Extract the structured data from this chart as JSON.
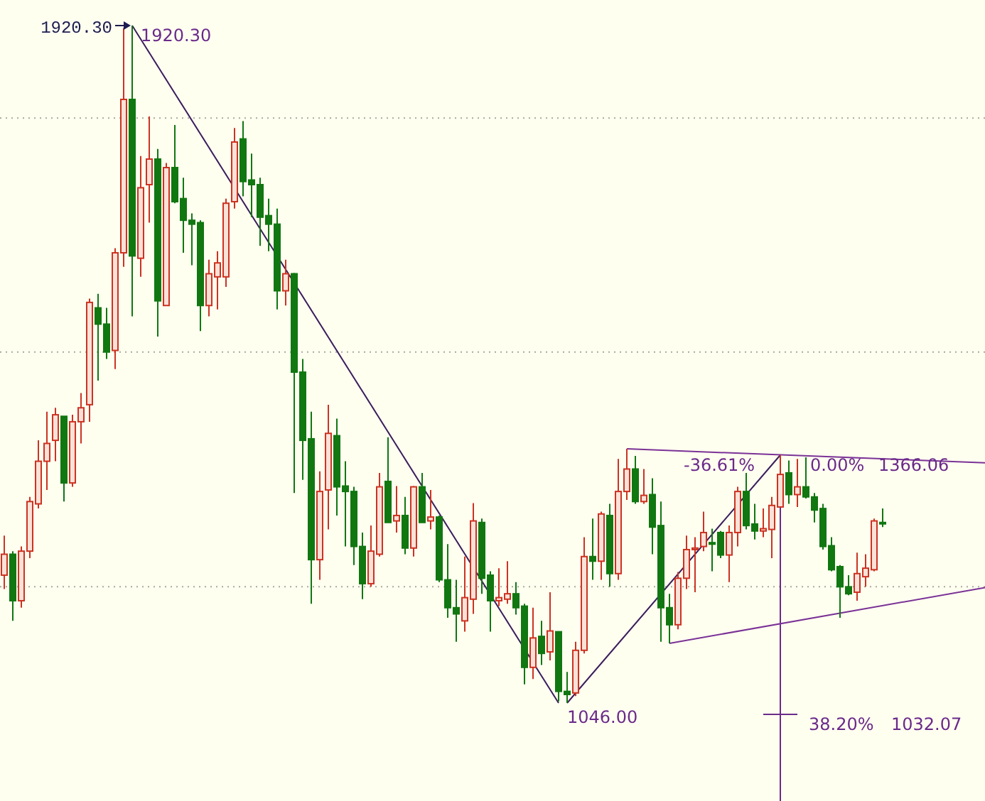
{
  "chart_data": {
    "type": "candlestick",
    "tick_labels": false,
    "grid": "y",
    "yticks": [
      {
        "value": 1801,
        "label": null
      },
      {
        "value": 1499,
        "label": null
      },
      {
        "value": 1196,
        "label": null
      }
    ],
    "categories": [
      null,
      null,
      null,
      null,
      null,
      null,
      null,
      null,
      null,
      null,
      null,
      null,
      null,
      null,
      null,
      null,
      null,
      null,
      null,
      null,
      null,
      null,
      null,
      null,
      null,
      null,
      null,
      null,
      null,
      null,
      null,
      null,
      null,
      null,
      null,
      null,
      null,
      null,
      null,
      null,
      null,
      null,
      null,
      null,
      null,
      null,
      null,
      null,
      null,
      null,
      null,
      null,
      null,
      null,
      null,
      null,
      null,
      null,
      null,
      null,
      null,
      null,
      null,
      null,
      null,
      null,
      null,
      null,
      null,
      null,
      null,
      null,
      null,
      null,
      null,
      null,
      null,
      null,
      null,
      null,
      null,
      null,
      null,
      null,
      null,
      null,
      null,
      null,
      null,
      null,
      null,
      null,
      null,
      null,
      null,
      null,
      null,
      null,
      null,
      null,
      null,
      null,
      null,
      null,
      null,
      null,
      null,
      null,
      null,
      null,
      null,
      null,
      null,
      null,
      null,
      null
    ],
    "ohlc": [
      [
        1211,
        1262,
        1193,
        1238
      ],
      [
        1238,
        1242,
        1152,
        1178
      ],
      [
        1178,
        1248,
        1169,
        1242
      ],
      [
        1242,
        1312,
        1233,
        1306
      ],
      [
        1303,
        1385,
        1297,
        1358
      ],
      [
        1358,
        1422,
        1321,
        1381
      ],
      [
        1385,
        1427,
        1358,
        1418
      ],
      [
        1416,
        1416,
        1306,
        1330
      ],
      [
        1330,
        1418,
        1325,
        1409
      ],
      [
        1409,
        1446,
        1381,
        1427
      ],
      [
        1431,
        1568,
        1409,
        1563
      ],
      [
        1556,
        1574,
        1462,
        1535
      ],
      [
        1535,
        1556,
        1490,
        1499
      ],
      [
        1501,
        1633,
        1477,
        1627
      ],
      [
        1627,
        1917,
        1609,
        1825
      ],
      [
        1825,
        1920.3,
        1545,
        1623
      ],
      [
        1620,
        1752,
        1596,
        1711
      ],
      [
        1715,
        1803,
        1666,
        1748
      ],
      [
        1748,
        1761,
        1519,
        1565
      ],
      [
        1559,
        1743,
        1559,
        1737
      ],
      [
        1737,
        1792,
        1691,
        1693
      ],
      [
        1697,
        1724,
        1627,
        1669
      ],
      [
        1669,
        1678,
        1611,
        1664
      ],
      [
        1666,
        1669,
        1526,
        1559
      ],
      [
        1559,
        1618,
        1545,
        1600
      ],
      [
        1596,
        1629,
        1554,
        1614
      ],
      [
        1596,
        1697,
        1583,
        1691
      ],
      [
        1693,
        1788,
        1684,
        1770
      ],
      [
        1774,
        1797,
        1700,
        1719
      ],
      [
        1721,
        1755,
        1673,
        1715
      ],
      [
        1715,
        1724,
        1636,
        1673
      ],
      [
        1675,
        1697,
        1629,
        1664
      ],
      [
        1664,
        1684,
        1554,
        1578
      ],
      [
        1578,
        1618,
        1559,
        1600
      ],
      [
        1600,
        1601,
        1317,
        1473
      ],
      [
        1473,
        1490,
        1334,
        1385
      ],
      [
        1387,
        1422,
        1174,
        1231
      ],
      [
        1231,
        1345,
        1205,
        1319
      ],
      [
        1321,
        1431,
        1270,
        1394
      ],
      [
        1391,
        1413,
        1288,
        1325
      ],
      [
        1326,
        1358,
        1248,
        1319
      ],
      [
        1319,
        1325,
        1224,
        1248
      ],
      [
        1248,
        1266,
        1180,
        1200
      ],
      [
        1200,
        1275,
        1196,
        1242
      ],
      [
        1238,
        1343,
        1235,
        1325
      ],
      [
        1332,
        1389,
        1279,
        1279
      ],
      [
        1281,
        1326,
        1266,
        1288
      ],
      [
        1288,
        1312,
        1238,
        1246
      ],
      [
        1246,
        1326,
        1235,
        1325
      ],
      [
        1325,
        1343,
        1279,
        1279
      ],
      [
        1281,
        1321,
        1270,
        1286
      ],
      [
        1286,
        1288,
        1202,
        1205
      ],
      [
        1205,
        1251,
        1156,
        1169
      ],
      [
        1169,
        1205,
        1125,
        1161
      ],
      [
        1152,
        1235,
        1138,
        1182
      ],
      [
        1180,
        1304,
        1161,
        1281
      ],
      [
        1279,
        1284,
        1187,
        1207
      ],
      [
        1211,
        1216,
        1138,
        1178
      ],
      [
        1178,
        1220,
        1171,
        1182
      ],
      [
        1180,
        1229,
        1174,
        1187
      ],
      [
        1187,
        1202,
        1160,
        1169
      ],
      [
        1171,
        1174,
        1070,
        1092
      ],
      [
        1092,
        1169,
        1077,
        1130
      ],
      [
        1132,
        1152,
        1095,
        1110
      ],
      [
        1112,
        1189,
        1101,
        1139
      ],
      [
        1138,
        1138,
        1048,
        1061
      ],
      [
        1061,
        1086,
        1046,
        1057
      ],
      [
        1059,
        1125,
        1055,
        1114
      ],
      [
        1114,
        1260,
        1110,
        1235
      ],
      [
        1235,
        1284,
        1205,
        1229
      ],
      [
        1229,
        1293,
        1205,
        1290
      ],
      [
        1288,
        1303,
        1196,
        1213
      ],
      [
        1213,
        1361,
        1205,
        1319
      ],
      [
        1319,
        1374,
        1308,
        1348
      ],
      [
        1348,
        1365,
        1303,
        1306
      ],
      [
        1306,
        1348,
        1303,
        1314
      ],
      [
        1315,
        1336,
        1238,
        1273
      ],
      [
        1275,
        1306,
        1125,
        1169
      ],
      [
        1169,
        1187,
        1123,
        1147
      ],
      [
        1147,
        1215,
        1141,
        1207
      ],
      [
        1207,
        1262,
        1193,
        1244
      ],
      [
        1244,
        1260,
        1189,
        1246
      ],
      [
        1248,
        1293,
        1242,
        1266
      ],
      [
        1253,
        1271,
        1216,
        1251
      ],
      [
        1266,
        1268,
        1233,
        1237
      ],
      [
        1237,
        1275,
        1202,
        1266
      ],
      [
        1266,
        1325,
        1248,
        1319
      ],
      [
        1319,
        1343,
        1270,
        1275
      ],
      [
        1277,
        1303,
        1257,
        1268
      ],
      [
        1268,
        1297,
        1260,
        1271
      ],
      [
        1270,
        1312,
        1233,
        1301
      ],
      [
        1299,
        1366.06,
        1299,
        1341
      ],
      [
        1343,
        1359,
        1303,
        1315
      ],
      [
        1315,
        1361,
        1299,
        1325
      ],
      [
        1325,
        1363,
        1310,
        1312
      ],
      [
        1312,
        1317,
        1279,
        1295
      ],
      [
        1297,
        1303,
        1244,
        1248
      ],
      [
        1249,
        1260,
        1216,
        1218
      ],
      [
        1222,
        1224,
        1156,
        1196
      ],
      [
        1196,
        1211,
        1185,
        1187
      ],
      [
        1189,
        1240,
        1178,
        1213
      ],
      [
        1209,
        1238,
        1196,
        1220
      ],
      [
        1218,
        1284,
        1216,
        1281
      ],
      [
        1279,
        1297,
        1273,
        1279
      ],
      null,
      null,
      null,
      null,
      null,
      null,
      null,
      null,
      null,
      null,
      null,
      null
    ],
    "colors": [
      "#cc3322",
      "#117711",
      "#cc3322",
      "#cc3322",
      "#cc3322",
      "#cc3322",
      "#cc3322",
      "#117711",
      "#cc3322",
      "#cc3322",
      "#cc3322",
      "#117711",
      "#117711",
      "#cc3322",
      "#cc3322",
      "#117711",
      "#cc3322",
      "#cc3322",
      "#117711",
      "#cc3322",
      "#117711",
      "#117711",
      "#117711",
      "#117711",
      "#cc3322",
      "#cc3322",
      "#cc3322",
      "#cc3322",
      "#117711",
      "#117711",
      "#117711",
      "#117711",
      "#117711",
      "#cc3322",
      "#117711",
      "#117711",
      "#117711",
      "#cc3322",
      "#cc3322",
      "#117711",
      "#117711",
      "#117711",
      "#117711",
      "#cc3322",
      "#cc3322",
      "#117711",
      "#cc3322",
      "#117711",
      "#cc3322",
      "#117711",
      "#cc3322",
      "#117711",
      "#117711",
      "#117711",
      "#cc3322",
      "#cc3322",
      "#117711",
      "#117711",
      "#cc3322",
      "#cc3322",
      "#117711",
      "#117711",
      "#cc3322",
      "#117711",
      "#cc3322",
      "#117711",
      "#117711",
      "#cc3322",
      "#cc3322",
      "#117711",
      "#cc3322",
      "#117711",
      "#cc3322",
      "#cc3322",
      "#117711",
      "#cc3322",
      "#117711",
      "#117711",
      "#117711",
      "#cc3322",
      "#cc3322",
      "#cc3322",
      "#cc3322",
      "#117711",
      "#117711",
      "#cc3322",
      "#cc3322",
      "#117711",
      "#117711",
      "#cc3322",
      "#cc3322",
      "#cc3322",
      "#117711",
      "#cc3322",
      "#117711",
      "#117711",
      "#117711",
      "#117711",
      "#117711",
      "#117711",
      "#cc3322",
      "#cc3322",
      "#cc3322",
      "#117711",
      null,
      null,
      null,
      null,
      null,
      null,
      null,
      null,
      null,
      null,
      null,
      null
    ],
    "series": [
      {
        "type": "line",
        "color": "#3a1d5c",
        "values": [
          null,
          null,
          null,
          null,
          null,
          null,
          null,
          null,
          null,
          null,
          null,
          null,
          null,
          null,
          null,
          1920.3,
          null,
          null,
          null,
          null,
          null,
          null,
          null,
          null,
          null,
          null,
          null,
          null,
          null,
          null,
          null,
          null,
          null,
          null,
          null,
          null,
          null,
          null,
          null,
          null,
          null,
          null,
          null,
          null,
          null,
          null,
          null,
          null,
          null,
          null,
          null,
          null,
          null,
          null,
          null,
          null,
          null,
          null,
          null,
          null,
          null,
          null,
          null,
          null,
          null,
          1046,
          null,
          null,
          null,
          null,
          null,
          null,
          null,
          null,
          null,
          null,
          null,
          null,
          null,
          null,
          null,
          null,
          null,
          null,
          null,
          null,
          null,
          null,
          null,
          null,
          null,
          null,
          null,
          null,
          null,
          null,
          null,
          null,
          null,
          null,
          null,
          null,
          null,
          null,
          null,
          null,
          null,
          null,
          null,
          null,
          null,
          null,
          null,
          null,
          null,
          null
        ]
      },
      {
        "type": "line",
        "color": "#3a1d5c",
        "values": [
          null,
          null,
          null,
          null,
          null,
          null,
          null,
          null,
          null,
          null,
          null,
          null,
          null,
          null,
          null,
          null,
          null,
          null,
          null,
          null,
          null,
          null,
          null,
          null,
          null,
          null,
          null,
          null,
          null,
          null,
          null,
          null,
          null,
          null,
          null,
          null,
          null,
          null,
          null,
          null,
          null,
          null,
          null,
          null,
          null,
          null,
          null,
          null,
          null,
          null,
          null,
          null,
          null,
          null,
          null,
          null,
          null,
          null,
          null,
          null,
          null,
          null,
          null,
          null,
          null,
          null,
          1046,
          null,
          null,
          null,
          null,
          null,
          null,
          null,
          null,
          null,
          null,
          null,
          null,
          null,
          null,
          null,
          null,
          null,
          null,
          null,
          null,
          null,
          null,
          null,
          null,
          1366.06,
          null,
          null,
          null,
          null,
          null,
          null,
          null,
          null,
          null,
          null,
          null,
          null,
          null,
          null,
          null,
          null,
          null,
          null,
          null,
          null,
          null,
          null,
          null,
          null
        ]
      },
      {
        "type": "line",
        "color": "#7a3296",
        "values": [
          null,
          null,
          null,
          null,
          null,
          null,
          null,
          null,
          null,
          null,
          null,
          null,
          null,
          null,
          null,
          null,
          null,
          null,
          null,
          null,
          null,
          null,
          null,
          null,
          null,
          null,
          null,
          null,
          null,
          null,
          null,
          null,
          null,
          null,
          null,
          null,
          null,
          null,
          null,
          null,
          null,
          null,
          null,
          null,
          null,
          null,
          null,
          null,
          null,
          null,
          null,
          null,
          null,
          null,
          null,
          null,
          null,
          null,
          null,
          null,
          null,
          null,
          null,
          null,
          null,
          null,
          null,
          null,
          null,
          null,
          null,
          null,
          null,
          1374,
          null,
          null,
          null,
          null,
          null,
          null,
          null,
          null,
          null,
          null,
          null,
          null,
          null,
          null,
          null,
          null,
          null,
          null,
          null,
          null,
          null,
          null,
          null,
          null,
          null,
          null,
          null,
          null,
          null,
          null,
          null,
          null,
          null,
          null,
          null,
          null,
          null,
          null,
          null,
          null,
          null,
          1356
        ]
      },
      {
        "type": "line",
        "color": "#7a3296",
        "values": [
          null,
          null,
          null,
          null,
          null,
          null,
          null,
          null,
          null,
          null,
          null,
          null,
          null,
          null,
          null,
          null,
          null,
          null,
          null,
          null,
          null,
          null,
          null,
          null,
          null,
          null,
          null,
          null,
          null,
          null,
          null,
          null,
          null,
          null,
          null,
          null,
          null,
          null,
          null,
          null,
          null,
          null,
          null,
          null,
          null,
          null,
          null,
          null,
          null,
          null,
          null,
          null,
          null,
          null,
          null,
          null,
          null,
          null,
          null,
          null,
          null,
          null,
          null,
          null,
          null,
          null,
          null,
          null,
          null,
          null,
          null,
          null,
          null,
          null,
          null,
          null,
          null,
          null,
          1123,
          null,
          null,
          null,
          null,
          null,
          null,
          null,
          null,
          null,
          null,
          null,
          null,
          null,
          null,
          null,
          null,
          null,
          null,
          null,
          null,
          null,
          null,
          null,
          null,
          null,
          null,
          null,
          null,
          null,
          null,
          null,
          null,
          null,
          null,
          null,
          null,
          1195
        ]
      }
    ],
    "annotations": [
      "1920.30",
      "1920.30",
      "1046.00",
      "-36.61%",
      "0.00%",
      "1366.06",
      "38.20%",
      "1032.07"
    ]
  }
}
